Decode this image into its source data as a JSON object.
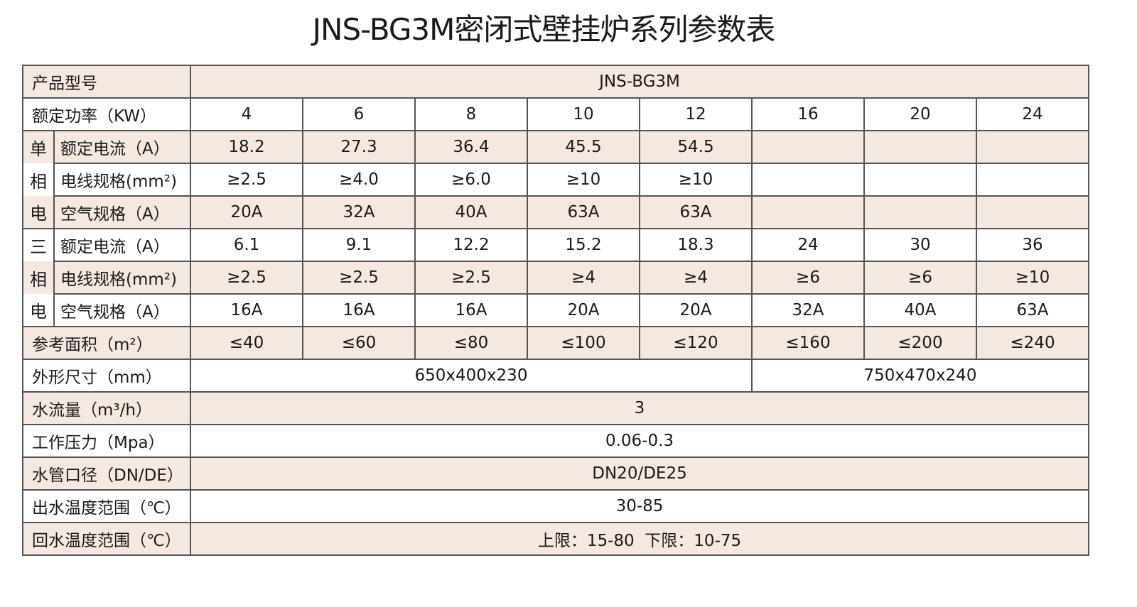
{
  "title": "JNS-BG3M密闭式壁挂炉系列参数表",
  "shade_color": "#f5e8e0",
  "rows": [
    {
      "label": "产品型号",
      "cells": [
        {
          "text": "JNS-BG3M",
          "span": 8
        }
      ]
    },
    {
      "label": "额定功率（KW）",
      "cells": [
        {
          "text": "4"
        },
        {
          "text": "6"
        },
        {
          "text": "8"
        },
        {
          "text": "10"
        },
        {
          "text": "12"
        },
        {
          "text": "16"
        },
        {
          "text": "20"
        },
        {
          "text": "24"
        }
      ]
    },
    {
      "group": "单",
      "label": "额定电流（A）",
      "cells": [
        {
          "text": "18.2"
        },
        {
          "text": "27.3"
        },
        {
          "text": "36.4"
        },
        {
          "text": "45.5"
        },
        {
          "text": "54.5"
        },
        {
          "text": ""
        },
        {
          "text": ""
        },
        {
          "text": ""
        }
      ]
    },
    {
      "group": "相",
      "label": "电线规格(mm²)",
      "cells": [
        {
          "text": "≥2.5"
        },
        {
          "text": "≥4.0"
        },
        {
          "text": "≥6.0"
        },
        {
          "text": "≥10"
        },
        {
          "text": "≥10"
        },
        {
          "text": ""
        },
        {
          "text": ""
        },
        {
          "text": ""
        }
      ]
    },
    {
      "group": "电",
      "label": "空气规格（A）",
      "cells": [
        {
          "text": "20A"
        },
        {
          "text": "32A"
        },
        {
          "text": "40A"
        },
        {
          "text": "63A"
        },
        {
          "text": "63A"
        },
        {
          "text": ""
        },
        {
          "text": ""
        },
        {
          "text": ""
        }
      ]
    },
    {
      "group": "三",
      "label": "额定电流（A）",
      "cells": [
        {
          "text": "6.1"
        },
        {
          "text": "9.1"
        },
        {
          "text": "12.2"
        },
        {
          "text": "15.2"
        },
        {
          "text": "18.3"
        },
        {
          "text": "24"
        },
        {
          "text": "30"
        },
        {
          "text": "36"
        }
      ]
    },
    {
      "group": "相",
      "label": "电线规格(mm²)",
      "cells": [
        {
          "text": "≥2.5"
        },
        {
          "text": "≥2.5"
        },
        {
          "text": "≥2.5"
        },
        {
          "text": "≥4"
        },
        {
          "text": "≥4"
        },
        {
          "text": "≥6"
        },
        {
          "text": "≥6"
        },
        {
          "text": "≥10"
        }
      ]
    },
    {
      "group": "电",
      "label": "空气规格（A）",
      "cells": [
        {
          "text": "16A"
        },
        {
          "text": "16A"
        },
        {
          "text": "16A"
        },
        {
          "text": "20A"
        },
        {
          "text": "20A"
        },
        {
          "text": "32A"
        },
        {
          "text": "40A"
        },
        {
          "text": "63A"
        }
      ]
    },
    {
      "label": "参考面积（m²）",
      "cells": [
        {
          "text": "≤40"
        },
        {
          "text": "≤60"
        },
        {
          "text": "≤80"
        },
        {
          "text": "≤100"
        },
        {
          "text": "≤120"
        },
        {
          "text": "≤160"
        },
        {
          "text": "≤200"
        },
        {
          "text": "≤240"
        }
      ]
    },
    {
      "label": "外形尺寸（mm）",
      "cells": [
        {
          "text": "650x400x230",
          "span": 5
        },
        {
          "text": "750x470x240",
          "span": 3
        }
      ]
    },
    {
      "label": "水流量（m³/h）",
      "cells": [
        {
          "text": "3",
          "span": 8
        }
      ]
    },
    {
      "label": "工作压力（Mpa）",
      "cells": [
        {
          "text": "0.06-0.3",
          "span": 8
        }
      ]
    },
    {
      "label": "水管口径（DN/DE）",
      "cells": [
        {
          "text": "DN20/DE25",
          "span": 8
        }
      ]
    },
    {
      "label": "出水温度范围（℃）",
      "cells": [
        {
          "text": "30-85",
          "span": 8
        }
      ]
    },
    {
      "label": "回水温度范围（℃）",
      "cells": [
        {
          "text": "上限：15-80  下限：10-75",
          "span": 8
        }
      ]
    }
  ]
}
